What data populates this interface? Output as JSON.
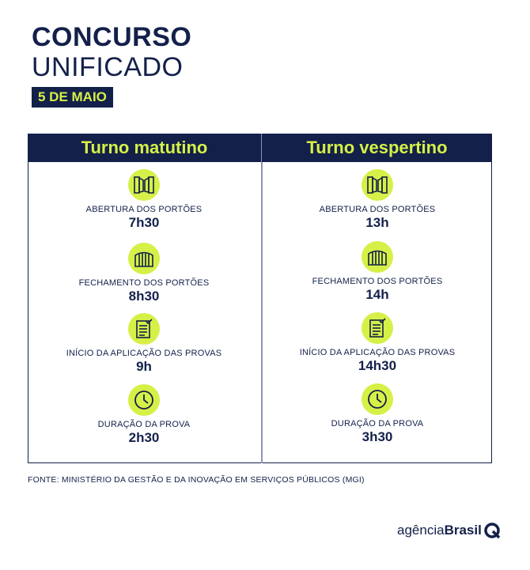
{
  "header": {
    "title_line1": "CONCURSO",
    "title_line2": "UNIFICADO",
    "date": "5 DE MAIO"
  },
  "columns": [
    {
      "title": "Turno matutino",
      "items": [
        {
          "icon": "gate-open-icon",
          "label": "ABERTURA DOS PORTÕES",
          "value": "7h30"
        },
        {
          "icon": "gate-closed-icon",
          "label": "FECHAMENTO DOS PORTÕES",
          "value": "8h30"
        },
        {
          "icon": "exam-sheet-icon",
          "label": "INÍCIO DA APLICAÇÃO DAS PROVAS",
          "value": "9h"
        },
        {
          "icon": "clock-icon",
          "label": "DURAÇÃO DA PROVA",
          "value": "2h30"
        }
      ]
    },
    {
      "title": "Turno vespertino",
      "items": [
        {
          "icon": "gate-open-icon",
          "label": "ABERTURA DOS PORTÕES",
          "value": "13h"
        },
        {
          "icon": "gate-closed-icon",
          "label": "FECHAMENTO DOS PORTÕES",
          "value": "14h"
        },
        {
          "icon": "exam-sheet-icon",
          "label": "INÍCIO DA APLICAÇÃO  DAS PROVAS",
          "value": "14h30"
        },
        {
          "icon": "clock-icon",
          "label": "DURAÇÃO DA PROVA",
          "value": "3h30"
        }
      ]
    }
  ],
  "source": "FONTE: MINISTÉRIO DA GESTÃO E DA INOVAÇÃO EM SERVIÇOS PÚBLICOS (MGI)",
  "logo": {
    "part1": "agência",
    "part2": "Brasil"
  },
  "colors": {
    "navy": "#13204a",
    "accent": "#d6f047"
  }
}
